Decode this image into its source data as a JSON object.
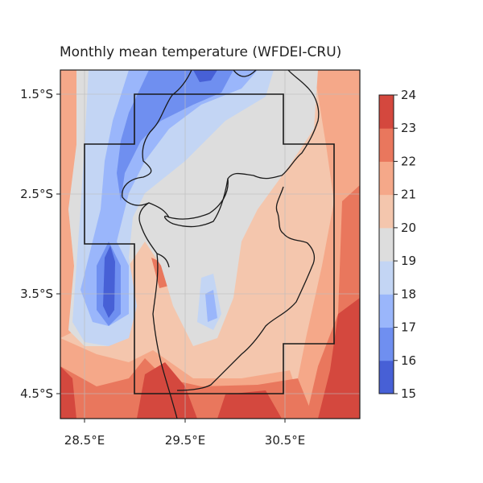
{
  "title": "Monthly mean temperature (WFDEI-CRU)",
  "map": {
    "lat_labels": [
      "1.5°S",
      "2.5°S",
      "3.5°S",
      "4.5°S"
    ],
    "lon_labels": [
      "28.5°E",
      "29.5°E",
      "30.5°E"
    ]
  },
  "colorbar": {
    "ticks": [
      "24",
      "23",
      "22",
      "21",
      "20",
      "19",
      "18",
      "17",
      "16",
      "15"
    ],
    "min": 15,
    "max": 24,
    "colors": [
      "#4760d6",
      "#6f8ff0",
      "#9ab6fb",
      "#c3d5f4",
      "#dddddd",
      "#f4c6ad",
      "#f5a889",
      "#e9775d",
      "#d4483e"
    ]
  }
}
